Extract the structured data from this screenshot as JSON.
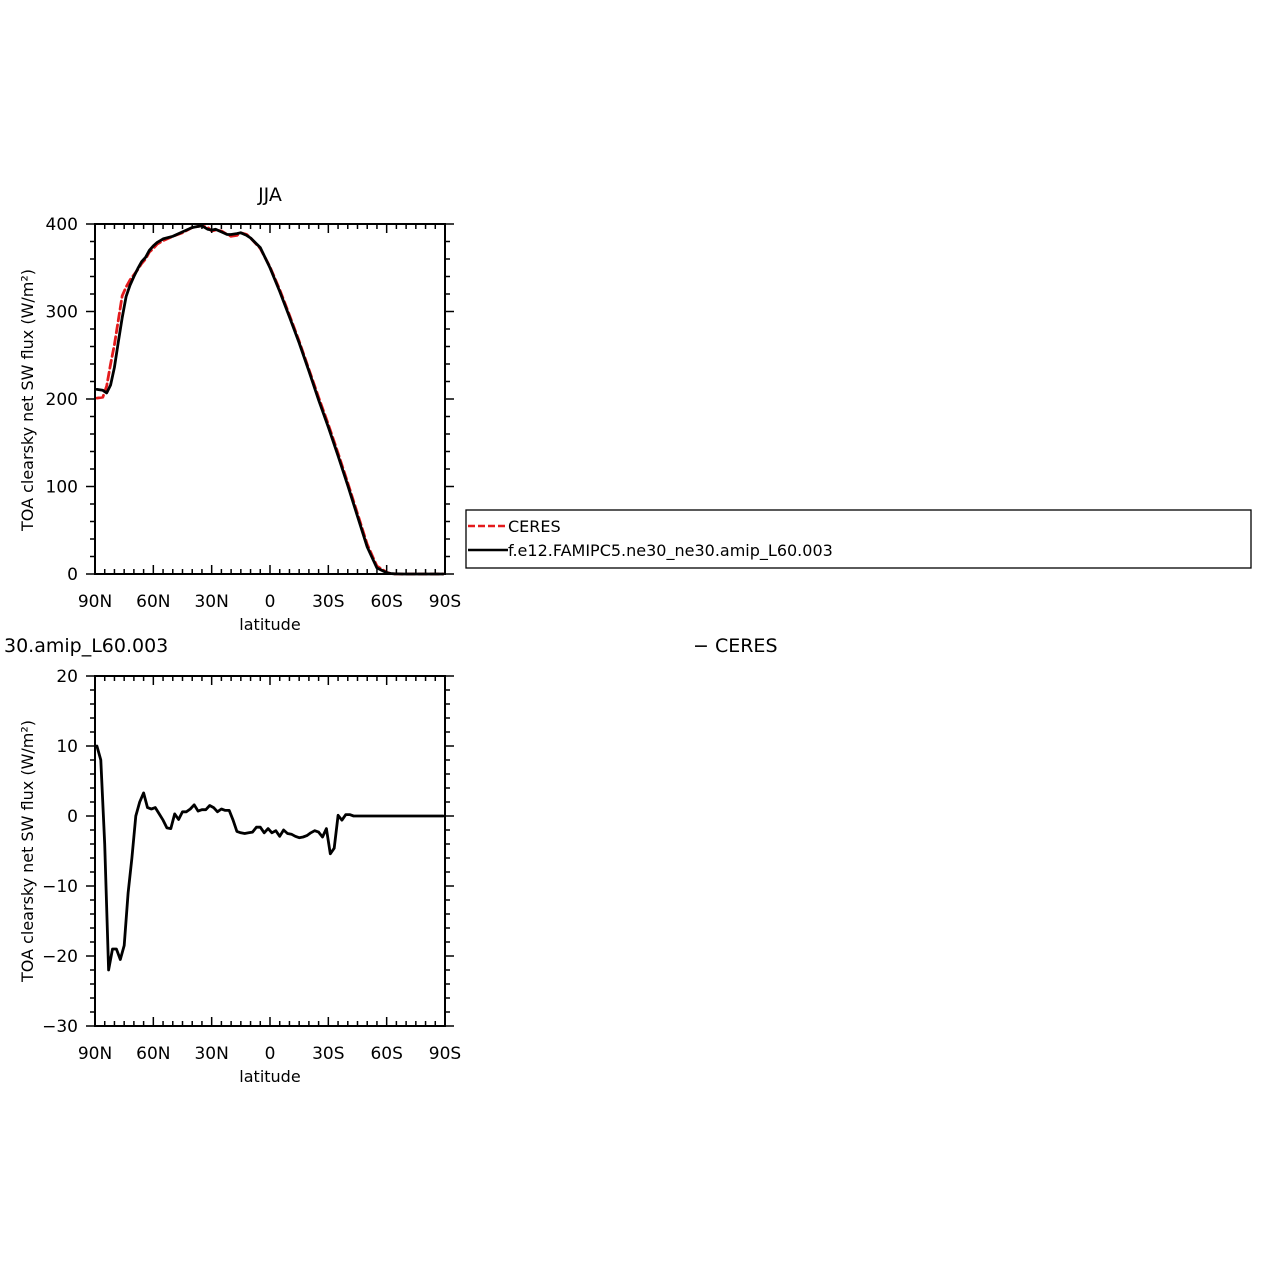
{
  "chart_data": [
    {
      "type": "line",
      "title": "JJA",
      "xlabel": "latitude",
      "ylabel": "TOA clearsky net SW flux (W/m²)",
      "xlim": [
        90,
        -90
      ],
      "ylim": [
        0,
        400
      ],
      "x_ticks": [
        90,
        60,
        30,
        0,
        -30,
        -60,
        -90
      ],
      "x_tick_labels": [
        "90N",
        "60N",
        "30N",
        "0",
        "30S",
        "60S",
        "90S"
      ],
      "y_ticks": [
        0,
        100,
        200,
        300,
        400
      ],
      "y_tick_labels": [
        "0",
        "100",
        "200",
        "300",
        "400"
      ],
      "legend": {
        "placement": "right",
        "entries": [
          "CERES",
          "f.e12.FAMIPC5.ne30_ne30.amip_L60.003"
        ]
      },
      "series": [
        {
          "name": "CERES",
          "color": "#e41a1c",
          "dash": "dashed",
          "x": [
            89,
            86,
            84,
            82,
            80,
            78,
            76,
            74,
            72,
            70,
            68,
            66,
            64,
            62,
            60,
            58,
            55,
            50,
            45,
            40,
            35,
            32,
            30,
            28,
            25,
            22,
            20,
            17,
            15,
            12,
            10,
            5,
            0,
            -5,
            -10,
            -15,
            -20,
            -25,
            -30,
            -35,
            -40,
            -45,
            -50,
            -55,
            -60,
            -62,
            -64,
            -66,
            -68,
            -70,
            -72,
            -75,
            -80,
            -85,
            -89
          ],
          "values": [
            201,
            202,
            215,
            240,
            262,
            290,
            318,
            328,
            336,
            342,
            348,
            355,
            360,
            368,
            372,
            377,
            381,
            386,
            390,
            396,
            398,
            396,
            392,
            393,
            392,
            388,
            386,
            387,
            390,
            388,
            384,
            372,
            351,
            325,
            296,
            266,
            234,
            202,
            171,
            138,
            104,
            69,
            34,
            9,
            2,
            0.5,
            0.2,
            0.1,
            0,
            0,
            0,
            0,
            0,
            0,
            0
          ]
        },
        {
          "name": "f.e12.FAMIPC5.ne30_ne30.amip_L60.003",
          "color": "#000000",
          "dash": "solid",
          "x": [
            89,
            86,
            84,
            82,
            80,
            78,
            76,
            74,
            72,
            70,
            68,
            66,
            64,
            62,
            60,
            58,
            55,
            50,
            45,
            40,
            35,
            32,
            30,
            28,
            25,
            22,
            20,
            17,
            15,
            12,
            10,
            5,
            0,
            -5,
            -10,
            -15,
            -20,
            -25,
            -30,
            -35,
            -40,
            -45,
            -50,
            -55,
            -60,
            -62,
            -64,
            -66,
            -68,
            -70,
            -72,
            -75,
            -80,
            -85,
            -89
          ],
          "values": [
            211,
            210,
            207,
            216,
            236,
            265,
            293,
            317,
            330,
            340,
            349,
            357,
            362,
            370,
            375,
            379,
            383,
            386,
            391,
            396,
            398,
            394,
            393,
            394,
            391,
            388,
            388,
            389,
            390,
            387,
            384,
            373,
            350,
            323,
            294,
            264,
            232,
            199,
            168,
            135,
            101,
            66,
            31,
            7,
            1.5,
            0.6,
            0.2,
            0.1,
            0,
            0,
            0,
            0,
            0,
            0,
            0
          ]
        }
      ]
    },
    {
      "type": "line",
      "title": "30.amip_L60.003",
      "subtitle": "− CERES",
      "xlabel": "latitude",
      "ylabel": "TOA clearsky net SW flux (W/m²)",
      "xlim": [
        90,
        -90
      ],
      "ylim": [
        -30,
        20
      ],
      "x_ticks": [
        90,
        60,
        30,
        0,
        -30,
        -60,
        -90
      ],
      "x_tick_labels": [
        "90N",
        "60N",
        "30N",
        "0",
        "30S",
        "60S",
        "90S"
      ],
      "y_ticks": [
        -30,
        -20,
        -10,
        0,
        10,
        20
      ],
      "y_tick_labels": [
        "−30",
        "−20",
        "−10",
        "0",
        "10",
        "20"
      ],
      "series": [
        {
          "color": "#000000",
          "dash": "solid",
          "x": [
            89,
            87,
            85,
            83,
            81,
            79,
            77,
            75,
            73,
            71,
            69,
            67,
            65,
            63,
            61,
            59,
            57,
            55,
            53,
            51,
            49,
            47,
            45,
            43,
            41,
            39,
            37,
            35,
            33,
            31,
            29,
            27,
            25,
            23,
            21,
            19,
            17,
            15,
            13,
            11,
            9,
            7,
            5,
            3,
            1,
            -1,
            -3,
            -5,
            -7,
            -9,
            -11,
            -13,
            -15,
            -17,
            -19,
            -21,
            -23,
            -25,
            -27,
            -29,
            -31,
            -33,
            -35,
            -37,
            -39,
            -41,
            -43,
            -45,
            -47,
            -49,
            -51,
            -53,
            -55,
            -57,
            -59,
            -61,
            -63,
            -65,
            -67,
            -69,
            -71,
            -73,
            -75,
            -77,
            -79,
            -81,
            -83,
            -85,
            -87,
            -89
          ],
          "values": [
            10,
            8,
            -4,
            -22,
            -19,
            -19,
            -20.5,
            -18.5,
            -11,
            -6,
            0,
            2,
            3.3,
            1.2,
            1,
            1.2,
            0.3,
            -0.6,
            -1.7,
            -1.8,
            0.3,
            -0.5,
            0.6,
            0.6,
            1,
            1.6,
            0.7,
            0.9,
            0.9,
            1.5,
            1.2,
            0.6,
            1,
            0.8,
            0.8,
            -0.6,
            -2.2,
            -2.4,
            -2.5,
            -2.4,
            -2.3,
            -1.6,
            -1.6,
            -2.4,
            -1.8,
            -2.4,
            -2.1,
            -2.9,
            -2,
            -2.5,
            -2.6,
            -2.9,
            -3.1,
            -3,
            -2.8,
            -2.4,
            -2.1,
            -2.3,
            -3,
            -1.8,
            -5.4,
            -4.6,
            0.1,
            -0.6,
            0.2,
            0.2,
            0,
            0,
            0,
            0,
            0,
            0,
            0,
            0,
            0,
            0,
            0,
            0,
            0,
            0,
            0,
            0,
            0,
            0,
            0,
            0,
            0,
            0,
            0,
            0
          ]
        }
      ]
    }
  ]
}
